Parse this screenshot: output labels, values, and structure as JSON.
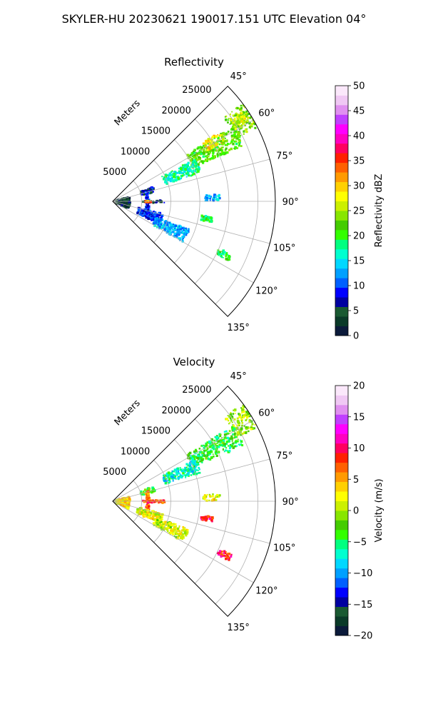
{
  "figure": {
    "suptitle": "SKYLER-HU  20230621  190017.151 UTC Elevation 04°"
  },
  "chart_data": [
    {
      "type": "polar-sector",
      "title": "Reflectivity",
      "radial_label": "Meters",
      "theta_range_deg": [
        45,
        135
      ],
      "r_max": 28000,
      "radial_ticks": [
        5000,
        10000,
        15000,
        20000,
        25000
      ],
      "angular_ticks": [
        45,
        60,
        75,
        90,
        105,
        120,
        135
      ],
      "angular_tick_labels": [
        "45°",
        "60°",
        "75°",
        "90°",
        "105°",
        "120°",
        "135°"
      ],
      "radial_tick_labels": [
        "5000",
        "10000",
        "15000",
        "20000",
        "25000"
      ],
      "grid": true,
      "colorbar": {
        "label": "Reflectivity dBZ",
        "range": [
          0,
          50
        ],
        "ticks": [
          0,
          5,
          10,
          15,
          20,
          25,
          30,
          35,
          40,
          45,
          50
        ],
        "tick_labels": [
          "0",
          "5",
          "10",
          "15",
          "20",
          "25",
          "30",
          "35",
          "40",
          "45",
          "50"
        ],
        "colormap": "pyart_NWSRef",
        "colors": [
          "#0b1a3a",
          "#0a3a28",
          "#1a5a32",
          "#0000a0",
          "#0000ff",
          "#0060ff",
          "#00a0ff",
          "#00d8ff",
          "#00ffd0",
          "#00ff80",
          "#33ff00",
          "#44cc00",
          "#88e600",
          "#ccf000",
          "#ffff00",
          "#ffd000",
          "#ff9a00",
          "#ff6000",
          "#ff2000",
          "#ff0060",
          "#ff00c0",
          "#ff00ff",
          "#c040ff",
          "#e090f0",
          "#f0c8f4",
          "#fbe8fb"
        ]
      },
      "echo_regions": [
        {
          "name": "far-band",
          "theta": [
            53,
            63
          ],
          "r": [
            24000,
            28000
          ],
          "value": 24
        },
        {
          "name": "mid-band",
          "theta": [
            58,
            67
          ],
          "r": [
            15000,
            24500
          ],
          "value": 22
        },
        {
          "name": "near-band",
          "theta": [
            63,
            72
          ],
          "r": [
            9500,
            16000
          ],
          "value": 17
        },
        {
          "name": "core-north",
          "theta": [
            57,
            62
          ],
          "r": [
            18500,
            22000
          ],
          "value": 29
        },
        {
          "name": "core-far",
          "theta": [
            55,
            60
          ],
          "r": [
            24500,
            27000
          ],
          "value": 27
        },
        {
          "name": "clutter-north",
          "theta": [
            70,
            78
          ],
          "r": [
            5000,
            7500
          ],
          "value": 7
        },
        {
          "name": "spike-vertical",
          "theta": [
            74,
            112
          ],
          "r": [
            5800,
            6400
          ],
          "value": 10
        },
        {
          "name": "spike-horizontal",
          "theta": [
            89,
            92
          ],
          "r": [
            5000,
            9000
          ],
          "value": 5
        },
        {
          "name": "spike-core",
          "theta": [
            89.5,
            91.5
          ],
          "r": [
            5600,
            6600
          ],
          "value": 33
        },
        {
          "name": "clutter-south",
          "theta": [
            104,
            116
          ],
          "r": [
            4500,
            9000
          ],
          "value": 9
        },
        {
          "name": "scatter-south",
          "theta": [
            110,
            120
          ],
          "r": [
            8000,
            14000
          ],
          "value": 13
        },
        {
          "name": "origin-clutter",
          "theta": [
            75,
            115
          ],
          "r": [
            0,
            3000
          ],
          "value": 4
        },
        {
          "name": "streak-100",
          "theta": [
            99,
            102
          ],
          "r": [
            15500,
            17500
          ],
          "value": 20
        },
        {
          "name": "streak-117",
          "theta": [
            114,
            117
          ],
          "r": [
            20000,
            22500
          ],
          "value": 19
        },
        {
          "name": "dots-88",
          "theta": [
            86,
            90
          ],
          "r": [
            15500,
            18500
          ],
          "value": 13
        }
      ]
    },
    {
      "type": "polar-sector",
      "title": "Velocity",
      "radial_label": "Meters",
      "theta_range_deg": [
        45,
        135
      ],
      "r_max": 28000,
      "radial_ticks": [
        5000,
        10000,
        15000,
        20000,
        25000
      ],
      "angular_ticks": [
        45,
        60,
        75,
        90,
        105,
        120,
        135
      ],
      "angular_tick_labels": [
        "45°",
        "60°",
        "75°",
        "90°",
        "105°",
        "120°",
        "135°"
      ],
      "radial_tick_labels": [
        "5000",
        "10000",
        "15000",
        "20000",
        "25000"
      ],
      "grid": true,
      "colorbar": {
        "label": "Velocity (m/s)",
        "range": [
          -20,
          20
        ],
        "ticks": [
          -20,
          -15,
          -10,
          -5,
          0,
          5,
          10,
          15,
          20
        ],
        "tick_labels": [
          "−20",
          "−15",
          "−10",
          "−5",
          "0",
          "5",
          "10",
          "15",
          "20"
        ],
        "colormap": "pyart_BuDRd18",
        "colors": [
          "#0b1a3a",
          "#0a3a28",
          "#1a5a32",
          "#0000a0",
          "#0000ff",
          "#0060ff",
          "#00a0ff",
          "#00d8ff",
          "#00ffd0",
          "#00ff80",
          "#33ff00",
          "#44cc00",
          "#88e600",
          "#ccf000",
          "#ffff00",
          "#ffd000",
          "#ff9a00",
          "#ff6000",
          "#ff2000",
          "#ff0060",
          "#ff00c0",
          "#ff00ff",
          "#c040ff",
          "#e090f0",
          "#f0c8f4",
          "#fbe8fb"
        ]
      },
      "echo_regions": [
        {
          "name": "far-band",
          "theta": [
            53,
            63
          ],
          "r": [
            24000,
            28000
          ],
          "value": 0
        },
        {
          "name": "mid-band",
          "theta": [
            58,
            67
          ],
          "r": [
            15000,
            24500
          ],
          "value": -4
        },
        {
          "name": "near-band",
          "theta": [
            63,
            72
          ],
          "r": [
            9500,
            16000
          ],
          "value": -7
        },
        {
          "name": "clutter-north",
          "theta": [
            70,
            78
          ],
          "r": [
            5000,
            7500
          ],
          "value": -3
        },
        {
          "name": "spike-vertical",
          "theta": [
            74,
            112
          ],
          "r": [
            5800,
            6400
          ],
          "value": 7
        },
        {
          "name": "spike-horizontal",
          "theta": [
            89,
            92
          ],
          "r": [
            5000,
            9000
          ],
          "value": 8
        },
        {
          "name": "clutter-south",
          "theta": [
            104,
            116
          ],
          "r": [
            4500,
            9000
          ],
          "value": 2
        },
        {
          "name": "scatter-south",
          "theta": [
            110,
            120
          ],
          "r": [
            8000,
            14000
          ],
          "value": 1
        },
        {
          "name": "origin-clutter",
          "theta": [
            75,
            115
          ],
          "r": [
            0,
            3000
          ],
          "value": 3
        },
        {
          "name": "streak-100",
          "theta": [
            99,
            102
          ],
          "r": [
            15500,
            17500
          ],
          "value": 9
        },
        {
          "name": "streak-117",
          "theta": [
            114,
            117
          ],
          "r": [
            20000,
            22500
          ],
          "value": 9
        },
        {
          "name": "dots-88",
          "theta": [
            86,
            90
          ],
          "r": [
            15500,
            18500
          ],
          "value": 2
        }
      ]
    }
  ]
}
